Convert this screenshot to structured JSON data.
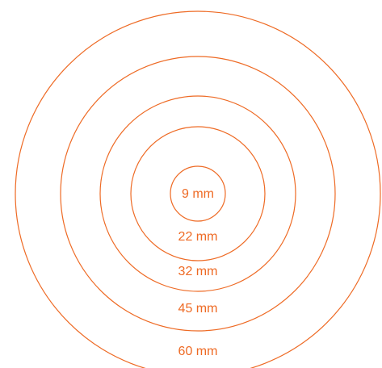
{
  "diagram": {
    "stroke_color": "#EE6A24",
    "label_color": "#EE6A24",
    "rings": [
      {
        "label": "9 mm"
      },
      {
        "label": "22 mm"
      },
      {
        "label": "32 mm"
      },
      {
        "label": "45 mm"
      },
      {
        "label": "60 mm"
      }
    ]
  }
}
